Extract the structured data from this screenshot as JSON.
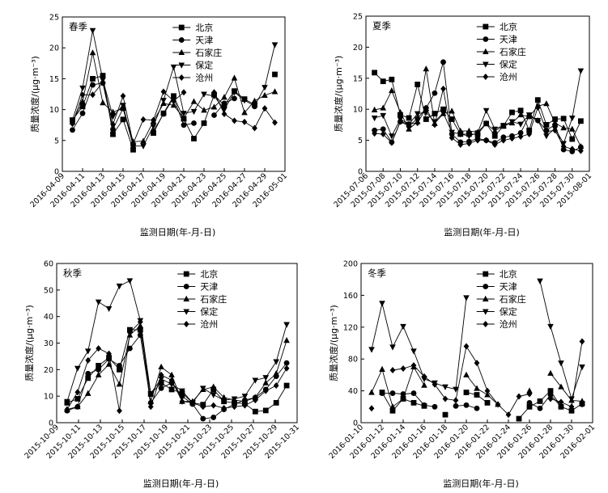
{
  "legend_names": [
    "北京",
    "天津",
    "石家庄",
    "保定",
    "沧州"
  ],
  "chart_data": [
    {
      "type": "line",
      "season": "春季",
      "xlabel": "监测日期(年-月-日)",
      "ylabel": "质量浓度/(μg·m⁻³)",
      "ylim": [
        0,
        25
      ],
      "yticks": [
        "0",
        "5",
        "10",
        "15",
        "20",
        "25"
      ],
      "xticks": [
        "2016-04-09",
        "2016-04-11",
        "2016-04-13",
        "2016-04-15",
        "2016-04-17",
        "2016-04-19",
        "2016-04-21",
        "2016-04-23",
        "2016-04-25",
        "2016-04-27",
        "2016-04-29",
        "2016-05-01"
      ],
      "x_start": 9,
      "x_end": 31,
      "series": [
        {
          "name": "北京",
          "x": [
            10,
            11,
            12,
            13,
            14,
            15,
            16,
            17,
            18,
            19,
            20,
            21,
            22,
            23,
            24,
            25,
            26,
            27,
            28,
            29,
            30
          ],
          "values": [
            8.3,
            10.5,
            15.0,
            15.5,
            6.0,
            8.4,
            3.5,
            null,
            6.2,
            9.4,
            12.2,
            8.5,
            5.3,
            7.8,
            12.4,
            10.7,
            13.0,
            11.7,
            10.8,
            null,
            15.7
          ]
        },
        {
          "name": "天津",
          "x": [
            10,
            11,
            12,
            13,
            14,
            15,
            16,
            17,
            18,
            19,
            20,
            21,
            22,
            23,
            24,
            25,
            26,
            27,
            28,
            29,
            30
          ],
          "values": [
            6.7,
            9.4,
            14.0,
            14.3,
            6.8,
            10.2,
            4.2,
            null,
            6.5,
            9.3,
            11.9,
            7.5,
            7.8,
            null,
            9.1,
            11.0,
            11.8,
            null,
            10.5,
            null,
            null
          ]
        },
        {
          "name": "石家庄",
          "x": [
            10,
            11,
            12,
            13,
            14,
            15,
            16,
            17,
            18,
            19,
            20,
            21,
            22,
            23,
            24,
            25,
            26,
            27,
            28,
            29,
            30
          ],
          "values": [
            8.0,
            11.3,
            19.2,
            11.1,
            9.6,
            10.2,
            4.8,
            4.9,
            8.1,
            11.0,
            10.7,
            8.6,
            11.3,
            9.9,
            10.4,
            12.0,
            15.1,
            9.5,
            11.4,
            12.3,
            12.9
          ]
        },
        {
          "name": "保定",
          "x": [
            10,
            11,
            12,
            13,
            14,
            15,
            16,
            17,
            18,
            19,
            20,
            21,
            22,
            23,
            24,
            25,
            26,
            27,
            28,
            29,
            30
          ],
          "values": [
            8.3,
            13.5,
            22.8,
            14.8,
            8.9,
            10.7,
            4.1,
            4.1,
            7.3,
            11.5,
            16.9,
            9.4,
            9.7,
            12.5,
            12.2,
            10.0,
            12.8,
            11.5,
            10.6,
            13.6,
            20.5
          ]
        },
        {
          "name": "沧州",
          "x": [
            10,
            11,
            12,
            13,
            14,
            15,
            16,
            17,
            18,
            19,
            20,
            21,
            22,
            23,
            24,
            25,
            26,
            27,
            28,
            29,
            30
          ],
          "values": [
            7.7,
            12.4,
            12.4,
            14.4,
            7.6,
            12.2,
            4.5,
            8.4,
            8.3,
            12.9,
            11.4,
            12.8,
            null,
            null,
            12.8,
            9.3,
            8.2,
            8.0,
            7.0,
            10.2,
            7.9
          ]
        }
      ]
    },
    {
      "type": "line",
      "season": "夏季",
      "xlabel": "监测日期(年-月-日)",
      "ylabel": "质量浓度/(μg·m⁻³)",
      "ylim": [
        0,
        25
      ],
      "yticks": [
        "0",
        "5",
        "10",
        "15",
        "20",
        "25"
      ],
      "xticks": [
        "2015-07-06",
        "2015-07-08",
        "2015-07-10",
        "2015-07-12",
        "2015-07-14",
        "2015-07-16",
        "2015-07-18",
        "2015-07-20",
        "2015-07-22",
        "2015-07-24",
        "2015-07-26",
        "2015-07-28",
        "2015-07-30",
        "2015-08-01"
      ],
      "x_start": 6,
      "x_end": 32,
      "series": [
        {
          "name": "北京",
          "x": [
            7,
            8,
            9,
            10,
            11,
            12,
            13,
            14,
            15,
            16,
            17,
            18,
            19,
            20,
            21,
            22,
            23,
            24,
            25,
            26,
            27,
            28,
            29,
            30,
            31
          ],
          "values": [
            15.9,
            14.5,
            14.8,
            9.1,
            8.6,
            14.0,
            8.4,
            9.3,
            10.0,
            8.4,
            6.0,
            6.0,
            6.0,
            7.7,
            5.7,
            7.3,
            9.5,
            9.8,
            6.6,
            11.5,
            7.5,
            8.4,
            8.5,
            5.2,
            8.1
          ]
        },
        {
          "name": "天津",
          "x": [
            7,
            8,
            9,
            10,
            11,
            12,
            13,
            14,
            15,
            16,
            17,
            18,
            19,
            20,
            21,
            22,
            23,
            24,
            25,
            26,
            27,
            28,
            29,
            30,
            31
          ],
          "values": [
            6.6,
            6.8,
            4.7,
            8.0,
            7.3,
            8.5,
            10.2,
            12.6,
            17.6,
            6.0,
            4.7,
            4.8,
            5.3,
            5.0,
            4.6,
            5.5,
            5.7,
            6.2,
            8.9,
            8.2,
            6.6,
            7.5,
            3.5,
            3.2,
            3.9
          ]
        },
        {
          "name": "石家庄",
          "x": [
            7,
            8,
            9,
            10,
            11,
            12,
            13,
            14,
            15,
            16,
            17,
            18,
            19,
            20,
            21,
            22,
            23,
            24,
            25,
            26,
            27,
            28,
            29,
            30,
            31
          ],
          "values": [
            9.9,
            10.2,
            13.0,
            9.5,
            6.8,
            8.0,
            16.5,
            7.7,
            9.3,
            9.7,
            6.5,
            6.5,
            6.3,
            7.7,
            6.5,
            7.3,
            7.8,
            9.1,
            8.8,
            10.5,
            10.9,
            7.8,
            7.0,
            6.8,
            4.0
          ]
        },
        {
          "name": "保定",
          "x": [
            7,
            8,
            9,
            10,
            11,
            12,
            13,
            14,
            15,
            16,
            17,
            18,
            19,
            20,
            21,
            22,
            23,
            24,
            25,
            26,
            27,
            28,
            29,
            30,
            31
          ],
          "values": [
            8.6,
            9.0,
            5.7,
            8.4,
            7.6,
            9.3,
            9.5,
            8.0,
            9.4,
            6.3,
            6.0,
            5.7,
            6.2,
            9.8,
            6.8,
            7.4,
            8.0,
            7.6,
            9.1,
            8.2,
            5.7,
            6.9,
            4.5,
            8.6,
            16.2
          ]
        },
        {
          "name": "沧州",
          "x": [
            7,
            8,
            9,
            10,
            11,
            12,
            13,
            14,
            15,
            16,
            17,
            18,
            19,
            20,
            21,
            22,
            23,
            24,
            25,
            26,
            27,
            28,
            29,
            30,
            31
          ],
          "values": [
            6.1,
            6.0,
            4.6,
            8.0,
            7.6,
            7.8,
            10.2,
            7.5,
            13.3,
            5.4,
            4.3,
            4.5,
            5.0,
            5.0,
            4.3,
            5.0,
            5.3,
            5.6,
            6.0,
            10.3,
            6.4,
            6.6,
            4.0,
            3.6,
            3.3
          ]
        }
      ]
    },
    {
      "type": "line",
      "season": "秋季",
      "xlabel": "监测日期(年-月-日)",
      "ylabel": "质量浓度/(μg·m⁻³)",
      "ylim": [
        0,
        60
      ],
      "yticks": [
        "0",
        "10",
        "20",
        "30",
        "40",
        "50",
        "60"
      ],
      "xticks": [
        "2015-10-09",
        "2015-10-11",
        "2015-10-13",
        "2015-10-15",
        "2015-10-17",
        "2015-10-19",
        "2015-10-21",
        "2015-10-23",
        "2015-10-25",
        "2015-10-27",
        "2015-10-29",
        "2015-10-31"
      ],
      "x_start": 9,
      "x_end": 32,
      "series": [
        {
          "name": "北京",
          "x": [
            10,
            11,
            12,
            13,
            14,
            15,
            16,
            17,
            18,
            19,
            20,
            21,
            22,
            23,
            24,
            25,
            26,
            27,
            28,
            29,
            30,
            31
          ],
          "values": [
            7.5,
            9.0,
            16.8,
            21.5,
            24.5,
            20.0,
            35.0,
            35.0,
            10.8,
            15.0,
            12.5,
            11.2,
            7.5,
            6.8,
            12.5,
            8.0,
            7.5,
            7.2,
            4.2,
            4.6,
            7.5,
            14.0
          ]
        },
        {
          "name": "天津",
          "x": [
            10,
            11,
            12,
            13,
            14,
            15,
            16,
            17,
            18,
            19,
            20,
            21,
            22,
            23,
            24,
            25,
            26,
            27,
            28,
            29,
            30,
            31
          ],
          "values": [
            4.5,
            6.0,
            18.5,
            20.0,
            24.0,
            21.5,
            28.0,
            33.0,
            7.5,
            13.0,
            15.0,
            10.0,
            7.0,
            1.5,
            2.0,
            5.0,
            7.0,
            8.5,
            9.5,
            12.5,
            17.5,
            22.5
          ]
        },
        {
          "name": "石家庄",
          "x": [
            10,
            11,
            12,
            13,
            14,
            15,
            16,
            17,
            18,
            19,
            20,
            21,
            22,
            23,
            24,
            25,
            26,
            27,
            28,
            29,
            30,
            31
          ],
          "values": [
            5.0,
            6.0,
            11.0,
            18.0,
            22.0,
            14.5,
            33.0,
            36.5,
            8.0,
            21.0,
            18.0,
            8.0,
            8.0,
            12.5,
            13.5,
            9.5,
            8.5,
            8.0,
            9.5,
            15.0,
            18.5,
            31.0
          ]
        },
        {
          "name": "保定",
          "x": [
            10,
            11,
            12,
            13,
            14,
            15,
            16,
            17,
            18,
            19,
            20,
            21,
            22,
            23,
            24,
            25,
            26,
            27,
            28,
            29,
            30,
            31
          ],
          "values": [
            8.0,
            20.5,
            27.0,
            45.5,
            43.0,
            51.5,
            53.5,
            38.5,
            11.0,
            16.5,
            14.5,
            12.0,
            7.5,
            13.0,
            10.5,
            8.5,
            9.0,
            10.0,
            16.0,
            17.0,
            23.0,
            37.0
          ]
        },
        {
          "name": "沧州",
          "x": [
            10,
            11,
            12,
            13,
            14,
            15,
            16,
            17,
            18,
            19,
            20,
            21,
            22,
            23,
            24,
            25,
            26,
            27,
            28,
            29,
            30,
            31
          ],
          "values": [
            5.0,
            11.5,
            23.5,
            28.0,
            26.0,
            4.5,
            34.0,
            38.0,
            6.0,
            18.0,
            16.0,
            8.0,
            7.5,
            6.0,
            6.5,
            5.5,
            6.0,
            6.5,
            8.5,
            12.0,
            14.0,
            20.5
          ]
        }
      ]
    },
    {
      "type": "line",
      "season": "冬季",
      "xlabel": "监测日期(年-月-日)",
      "ylabel": "质量浓度/(μg·m⁻³)",
      "ylim": [
        0,
        200
      ],
      "yticks": [
        "0",
        "40",
        "80",
        "120",
        "160",
        "200"
      ],
      "xticks": [
        "2016-01-10",
        "2016-01-12",
        "2016-01-14",
        "2016-01-16",
        "2016-01-18",
        "2016-01-20",
        "2016-01-22",
        "2016-01-24",
        "2016-01-26",
        "2016-01-28",
        "2016-01-30",
        "2016-02-01"
      ],
      "x_start": 10,
      "x_end": 32,
      "series": [
        {
          "name": "北京",
          "x": [
            11,
            12,
            13,
            14,
            15,
            16,
            17,
            18,
            19,
            20,
            21,
            22,
            23,
            24,
            25,
            26,
            27,
            28,
            29,
            30,
            31
          ],
          "values": [
            null,
            38,
            15,
            30,
            25,
            21,
            null,
            10,
            null,
            38,
            35,
            25,
            null,
            null,
            5,
            20,
            27,
            40,
            20,
            15,
            24
          ]
        },
        {
          "name": "天津",
          "x": [
            11,
            12,
            13,
            14,
            15,
            16,
            17,
            18,
            19,
            20,
            21,
            22,
            23,
            24,
            25,
            26,
            27,
            28,
            29,
            30,
            31
          ],
          "values": [
            null,
            37,
            37,
            36,
            37,
            22,
            20,
            null,
            21,
            22,
            18,
            null,
            null,
            null,
            null,
            25,
            18,
            35,
            20,
            null,
            23
          ]
        },
        {
          "name": "石家庄",
          "x": [
            11,
            12,
            13,
            14,
            15,
            16,
            17,
            18,
            19,
            20,
            21,
            22,
            23,
            24,
            25,
            26,
            27,
            28,
            29,
            30,
            31
          ],
          "values": [
            38,
            67,
            20,
            30,
            70,
            47,
            null,
            null,
            null,
            60,
            43,
            35,
            23,
            null,
            null,
            40,
            null,
            62,
            45,
            28,
            27
          ]
        },
        {
          "name": "保定",
          "x": [
            11,
            12,
            13,
            14,
            15,
            16,
            17,
            18,
            19,
            20,
            21,
            22,
            23,
            24,
            25,
            26,
            27,
            28,
            29,
            30,
            31
          ],
          "values": [
            92,
            150,
            95,
            121,
            90,
            55,
            50,
            45,
            42,
            157,
            null,
            null,
            null,
            null,
            null,
            null,
            178,
            121,
            75,
            30,
            70
          ]
        },
        {
          "name": "沧州",
          "x": [
            11,
            12,
            13,
            14,
            15,
            16,
            17,
            18,
            19,
            20,
            21,
            22,
            23,
            24,
            25,
            26,
            27,
            28,
            29,
            30,
            31
          ],
          "values": [
            18,
            null,
            66,
            68,
            72,
            58,
            48,
            30,
            28,
            96,
            75,
            40,
            23,
            10,
            33,
            36,
            null,
            30,
            26,
            20,
            102
          ]
        }
      ]
    }
  ]
}
